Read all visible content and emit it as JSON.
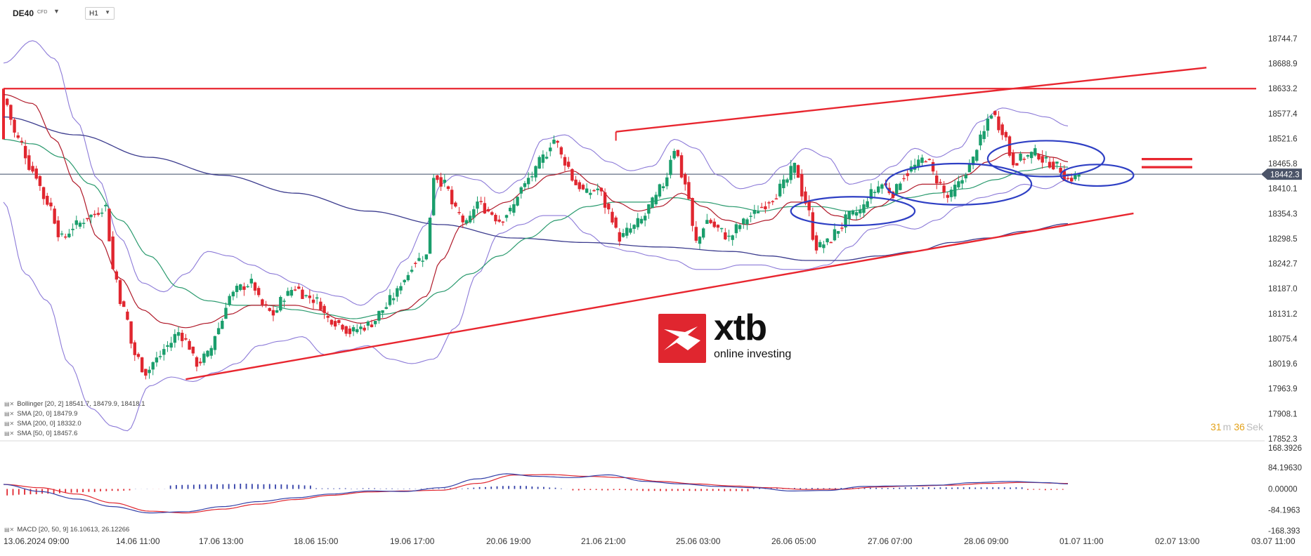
{
  "header": {
    "symbol": "DE40",
    "symbol_type": "CFD",
    "timeframe": "H1"
  },
  "indicators": [
    {
      "label": "Bollinger [20, 2] 18541.7,  18479.9,  18418.1"
    },
    {
      "label": "SMA [20, 0] 18479.9"
    },
    {
      "label": "SMA [200, 0] 18332.0"
    },
    {
      "label": "SMA [50, 0] 18457.6"
    }
  ],
  "macd_label": "MACD [20, 50, 9] 16.10613,  26.12266",
  "timer": {
    "minutes": "31",
    "m_unit": "m",
    "seconds": "36",
    "s_unit": "Sek"
  },
  "logo": {
    "text": "xtb",
    "tagline": "online investing"
  },
  "colors": {
    "bull": "#1a9e6c",
    "bear": "#e0262f",
    "red_line": "#e8262f",
    "boll": "#8c7ad8",
    "sma20": "#b01a2a",
    "sma50": "#2a9a6e",
    "sma200": "#3c3c8e",
    "circle": "#2e3fc4",
    "macd_main": "#3340a8",
    "macd_signal": "#e0262f"
  },
  "chart_data": {
    "type": "candlestick",
    "ylim": [
      17852.3,
      18744.7
    ],
    "y_ticks": [
      "18744.7",
      "18688.9",
      "18633.2",
      "18577.4",
      "18521.6",
      "18465.8",
      "18410.1",
      "18354.3",
      "18298.5",
      "18242.7",
      "18187.0",
      "18131.2",
      "18075.4",
      "18019.6",
      "17963.9",
      "17908.1",
      "17852.3"
    ],
    "current_price": "18442.3",
    "x_labels": [
      "13.06.2024  09:00",
      "14.06  11:00",
      "17.06  13:00",
      "18.06  15:00",
      "19.06  17:00",
      "20.06  19:00",
      "21.06  21:00",
      "25.06  03:00",
      "26.06  05:00",
      "27.06  07:00",
      "28.06  09:00",
      "01.07  11:00",
      "02.07  13:00",
      "03.07  11:00"
    ],
    "horizontal_resistance": 18633.2,
    "macd_ticks": [
      "168.3926",
      "84.19630",
      "0.00000",
      "-84.1963",
      "-168.393"
    ],
    "macd_ylim": [
      -168.393,
      168.3926
    ],
    "close_path": [
      [
        0,
        18610
      ],
      [
        4,
        18520
      ],
      [
        8,
        18450
      ],
      [
        12,
        18380
      ],
      [
        16,
        18300
      ],
      [
        20,
        18330
      ],
      [
        24,
        18350
      ],
      [
        28,
        18370
      ],
      [
        30,
        18230
      ],
      [
        33,
        18140
      ],
      [
        36,
        18040
      ],
      [
        39,
        18000
      ],
      [
        42,
        18030
      ],
      [
        45,
        18060
      ],
      [
        48,
        18090
      ],
      [
        50,
        18070
      ],
      [
        53,
        18020
      ],
      [
        56,
        18040
      ],
      [
        59,
        18100
      ],
      [
        62,
        18170
      ],
      [
        65,
        18190
      ],
      [
        68,
        18200
      ],
      [
        71,
        18150
      ],
      [
        74,
        18130
      ],
      [
        77,
        18170
      ],
      [
        80,
        18190
      ],
      [
        83,
        18170
      ],
      [
        86,
        18160
      ],
      [
        89,
        18120
      ],
      [
        92,
        18110
      ],
      [
        95,
        18090
      ],
      [
        98,
        18100
      ],
      [
        101,
        18110
      ],
      [
        104,
        18140
      ],
      [
        107,
        18170
      ],
      [
        110,
        18210
      ],
      [
        113,
        18250
      ],
      [
        116,
        18260
      ],
      [
        118,
        18440
      ],
      [
        121,
        18420
      ],
      [
        124,
        18360
      ],
      [
        127,
        18330
      ],
      [
        130,
        18380
      ],
      [
        133,
        18360
      ],
      [
        136,
        18340
      ],
      [
        139,
        18360
      ],
      [
        142,
        18410
      ],
      [
        145,
        18440
      ],
      [
        148,
        18480
      ],
      [
        151,
        18520
      ],
      [
        154,
        18470
      ],
      [
        157,
        18420
      ],
      [
        160,
        18400
      ],
      [
        163,
        18410
      ],
      [
        166,
        18360
      ],
      [
        169,
        18300
      ],
      [
        172,
        18320
      ],
      [
        175,
        18340
      ],
      [
        178,
        18380
      ],
      [
        181,
        18420
      ],
      [
        184,
        18500
      ],
      [
        187,
        18420
      ],
      [
        190,
        18290
      ],
      [
        193,
        18340
      ],
      [
        196,
        18320
      ],
      [
        199,
        18300
      ],
      [
        202,
        18330
      ],
      [
        205,
        18350
      ],
      [
        208,
        18370
      ],
      [
        211,
        18390
      ],
      [
        214,
        18420
      ],
      [
        217,
        18460
      ],
      [
        220,
        18380
      ],
      [
        223,
        18280
      ],
      [
        226,
        18290
      ],
      [
        229,
        18320
      ],
      [
        232,
        18350
      ],
      [
        235,
        18360
      ],
      [
        238,
        18400
      ],
      [
        241,
        18420
      ],
      [
        244,
        18400
      ],
      [
        247,
        18440
      ],
      [
        250,
        18460
      ],
      [
        253,
        18480
      ],
      [
        256,
        18430
      ],
      [
        259,
        18390
      ],
      [
        262,
        18420
      ],
      [
        265,
        18460
      ],
      [
        268,
        18520
      ],
      [
        271,
        18580
      ],
      [
        274,
        18540
      ],
      [
        277,
        18470
      ],
      [
        280,
        18480
      ],
      [
        283,
        18490
      ],
      [
        286,
        18470
      ],
      [
        289,
        18460
      ],
      [
        292,
        18430
      ],
      [
        295,
        18442
      ]
    ],
    "bollinger_upper": [
      [
        0,
        18690
      ],
      [
        8,
        18740
      ],
      [
        14,
        18700
      ],
      [
        20,
        18560
      ],
      [
        26,
        18430
      ],
      [
        32,
        18300
      ],
      [
        38,
        18200
      ],
      [
        44,
        18180
      ],
      [
        50,
        18220
      ],
      [
        56,
        18270
      ],
      [
        62,
        18260
      ],
      [
        68,
        18240
      ],
      [
        74,
        18220
      ],
      [
        80,
        18200
      ],
      [
        86,
        18180
      ],
      [
        92,
        18170
      ],
      [
        98,
        18150
      ],
      [
        104,
        18180
      ],
      [
        110,
        18250
      ],
      [
        116,
        18330
      ],
      [
        120,
        18420
      ],
      [
        124,
        18440
      ],
      [
        130,
        18430
      ],
      [
        136,
        18400
      ],
      [
        142,
        18430
      ],
      [
        148,
        18520
      ],
      [
        154,
        18530
      ],
      [
        160,
        18500
      ],
      [
        166,
        18470
      ],
      [
        172,
        18450
      ],
      [
        178,
        18460
      ],
      [
        184,
        18520
      ],
      [
        190,
        18500
      ],
      [
        196,
        18440
      ],
      [
        202,
        18410
      ],
      [
        208,
        18420
      ],
      [
        214,
        18460
      ],
      [
        220,
        18500
      ],
      [
        226,
        18480
      ],
      [
        232,
        18420
      ],
      [
        238,
        18430
      ],
      [
        244,
        18460
      ],
      [
        250,
        18500
      ],
      [
        256,
        18480
      ],
      [
        262,
        18500
      ],
      [
        268,
        18560
      ],
      [
        274,
        18590
      ],
      [
        280,
        18580
      ],
      [
        286,
        18570
      ],
      [
        292,
        18550
      ]
    ],
    "bollinger_lower": [
      [
        0,
        18380
      ],
      [
        6,
        18220
      ],
      [
        12,
        18160
      ],
      [
        18,
        18020
      ],
      [
        24,
        17920
      ],
      [
        30,
        17880
      ],
      [
        34,
        17870
      ],
      [
        40,
        17970
      ],
      [
        46,
        17990
      ],
      [
        52,
        17980
      ],
      [
        58,
        18000
      ],
      [
        64,
        18020
      ],
      [
        70,
        18060
      ],
      [
        76,
        18070
      ],
      [
        82,
        18080
      ],
      [
        88,
        18040
      ],
      [
        94,
        18050
      ],
      [
        100,
        18060
      ],
      [
        106,
        18030
      ],
      [
        112,
        18020
      ],
      [
        118,
        18030
      ],
      [
        124,
        18100
      ],
      [
        130,
        18220
      ],
      [
        136,
        18310
      ],
      [
        142,
        18330
      ],
      [
        148,
        18350
      ],
      [
        154,
        18350
      ],
      [
        160,
        18310
      ],
      [
        166,
        18280
      ],
      [
        172,
        18270
      ],
      [
        178,
        18260
      ],
      [
        184,
        18250
      ],
      [
        190,
        18230
      ],
      [
        196,
        18230
      ],
      [
        202,
        18240
      ],
      [
        208,
        18240
      ],
      [
        214,
        18230
      ],
      [
        220,
        18230
      ],
      [
        226,
        18240
      ],
      [
        232,
        18280
      ],
      [
        238,
        18320
      ],
      [
        244,
        18330
      ],
      [
        250,
        18320
      ],
      [
        256,
        18340
      ],
      [
        262,
        18370
      ],
      [
        268,
        18390
      ],
      [
        274,
        18400
      ],
      [
        280,
        18420
      ],
      [
        286,
        18410
      ],
      [
        292,
        18430
      ]
    ],
    "sma20": [
      [
        0,
        18620
      ],
      [
        8,
        18600
      ],
      [
        14,
        18520
      ],
      [
        20,
        18420
      ],
      [
        26,
        18300
      ],
      [
        32,
        18210
      ],
      [
        38,
        18140
      ],
      [
        44,
        18110
      ],
      [
        50,
        18100
      ],
      [
        56,
        18110
      ],
      [
        62,
        18130
      ],
      [
        68,
        18150
      ],
      [
        74,
        18150
      ],
      [
        80,
        18150
      ],
      [
        86,
        18140
      ],
      [
        92,
        18120
      ],
      [
        98,
        18110
      ],
      [
        104,
        18120
      ],
      [
        110,
        18140
      ],
      [
        116,
        18170
      ],
      [
        120,
        18250
      ],
      [
        126,
        18330
      ],
      [
        132,
        18360
      ],
      [
        138,
        18380
      ],
      [
        144,
        18410
      ],
      [
        150,
        18440
      ],
      [
        156,
        18450
      ],
      [
        162,
        18420
      ],
      [
        168,
        18380
      ],
      [
        174,
        18360
      ],
      [
        180,
        18370
      ],
      [
        186,
        18400
      ],
      [
        192,
        18370
      ],
      [
        198,
        18340
      ],
      [
        204,
        18330
      ],
      [
        210,
        18340
      ],
      [
        216,
        18380
      ],
      [
        222,
        18380
      ],
      [
        228,
        18350
      ],
      [
        234,
        18340
      ],
      [
        240,
        18370
      ],
      [
        246,
        18400
      ],
      [
        252,
        18420
      ],
      [
        258,
        18420
      ],
      [
        264,
        18440
      ],
      [
        270,
        18470
      ],
      [
        276,
        18490
      ],
      [
        282,
        18490
      ],
      [
        288,
        18480
      ],
      [
        292,
        18470
      ]
    ],
    "sma50": [
      [
        0,
        18520
      ],
      [
        8,
        18510
      ],
      [
        16,
        18480
      ],
      [
        24,
        18420
      ],
      [
        32,
        18340
      ],
      [
        40,
        18260
      ],
      [
        48,
        18190
      ],
      [
        56,
        18160
      ],
      [
        64,
        18150
      ],
      [
        72,
        18150
      ],
      [
        80,
        18140
      ],
      [
        88,
        18130
      ],
      [
        96,
        18120
      ],
      [
        104,
        18130
      ],
      [
        112,
        18140
      ],
      [
        120,
        18180
      ],
      [
        128,
        18220
      ],
      [
        136,
        18260
      ],
      [
        144,
        18300
      ],
      [
        152,
        18340
      ],
      [
        160,
        18370
      ],
      [
        168,
        18380
      ],
      [
        176,
        18380
      ],
      [
        184,
        18390
      ],
      [
        192,
        18380
      ],
      [
        200,
        18370
      ],
      [
        208,
        18360
      ],
      [
        216,
        18370
      ],
      [
        224,
        18370
      ],
      [
        232,
        18360
      ],
      [
        240,
        18370
      ],
      [
        248,
        18390
      ],
      [
        256,
        18400
      ],
      [
        264,
        18410
      ],
      [
        272,
        18430
      ],
      [
        280,
        18450
      ],
      [
        288,
        18460
      ],
      [
        292,
        18458
      ]
    ],
    "sma200": [
      [
        0,
        18570
      ],
      [
        20,
        18530
      ],
      [
        40,
        18480
      ],
      [
        60,
        18440
      ],
      [
        80,
        18400
      ],
      [
        100,
        18360
      ],
      [
        120,
        18330
      ],
      [
        140,
        18300
      ],
      [
        160,
        18290
      ],
      [
        180,
        18280
      ],
      [
        200,
        18270
      ],
      [
        210,
        18260
      ],
      [
        220,
        18250
      ],
      [
        230,
        18250
      ],
      [
        240,
        18260
      ],
      [
        250,
        18270
      ],
      [
        260,
        18290
      ],
      [
        270,
        18300
      ],
      [
        280,
        18315
      ],
      [
        292,
        18332
      ]
    ],
    "trendline_lower": [
      [
        50,
        17985
      ],
      [
        310,
        18355
      ]
    ],
    "trendline_upper": [
      [
        168,
        18537
      ],
      [
        330,
        18680
      ]
    ],
    "target_marks": [
      18476,
      18458
    ],
    "circles": [
      {
        "cx": 233,
        "cy": 18360,
        "rx": 17,
        "ry": 32
      },
      {
        "cx": 262,
        "cy": 18420,
        "rx": 20,
        "ry": 46
      },
      {
        "cx": 286,
        "cy": 18477,
        "rx": 16,
        "ry": 40
      },
      {
        "cx": 300,
        "cy": 18440,
        "rx": 10,
        "ry": 24
      }
    ],
    "x_domain": [
      0,
      345
    ]
  }
}
